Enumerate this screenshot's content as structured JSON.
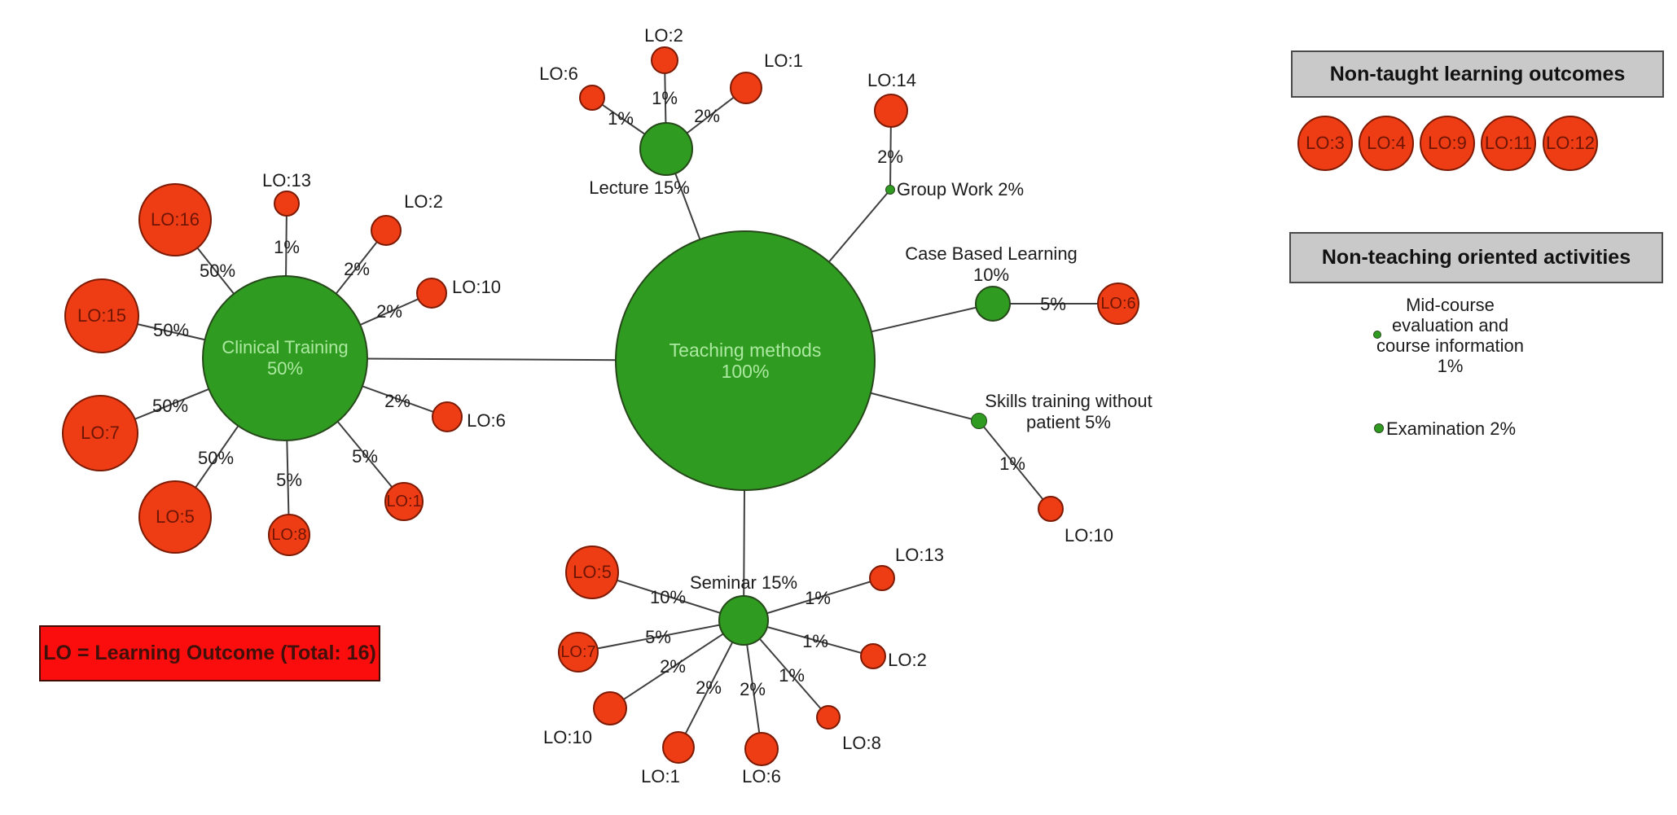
{
  "note": {
    "label": "LO = Learning Outcome (Total: 16)"
  },
  "legend_non_taught": {
    "title": "Non-taught learning outcomes",
    "items": [
      "LO:3",
      "LO:4",
      "LO:9",
      "LO:11",
      "LO:12"
    ]
  },
  "legend_non_teaching": {
    "title": "Non-teaching oriented activities",
    "items": [
      {
        "label": "Mid-course evaluation and course information",
        "percent": "1%"
      },
      {
        "label": "Examination",
        "percent": "2%"
      }
    ]
  },
  "colors": {
    "method_green": "#2f9b21",
    "outcome_red": "#ee3d15",
    "note_red": "#fb0d0d",
    "legend_gray": "#c9c9c9",
    "method_text_light_green": "#ace9a0",
    "outcome_text_dark_red": "#6e1505",
    "edge_gray": "#3f3f3f"
  },
  "graph": {
    "nodes": [
      {
        "id": "teaching",
        "label": "Teaching methods",
        "sublabel": "100%",
        "type": "method"
      },
      {
        "id": "clinical",
        "label": "Clinical Training 50%",
        "type": "method"
      },
      {
        "id": "lecture",
        "label": "Lecture 15%",
        "type": "method"
      },
      {
        "id": "seminar",
        "label": "Seminar 15%",
        "type": "method"
      },
      {
        "id": "cbl",
        "label": "Case Based Learning",
        "sublabel": "10%",
        "type": "method"
      },
      {
        "id": "groupwork",
        "label": "Group Work 2%",
        "type": "activity-dot"
      },
      {
        "id": "skills",
        "label": "Skills training without patient 5%",
        "type": "activity-dot"
      },
      {
        "id": "cl_lo16",
        "label": "LO:16",
        "type": "outcome"
      },
      {
        "id": "cl_lo13",
        "label": "LO:13",
        "type": "outcome"
      },
      {
        "id": "cl_lo2",
        "label": "LO:2",
        "type": "outcome"
      },
      {
        "id": "cl_lo10",
        "label": "LO:10",
        "type": "outcome"
      },
      {
        "id": "cl_lo6",
        "label": "LO:6",
        "type": "outcome"
      },
      {
        "id": "cl_lo1",
        "label": "LO:1",
        "type": "outcome"
      },
      {
        "id": "cl_lo8",
        "label": "LO:8",
        "type": "outcome"
      },
      {
        "id": "cl_lo5",
        "label": "LO:5",
        "type": "outcome"
      },
      {
        "id": "cl_lo7",
        "label": "LO:7",
        "type": "outcome"
      },
      {
        "id": "cl_lo15",
        "label": "LO:15",
        "type": "outcome"
      },
      {
        "id": "lec_lo6",
        "label": "LO:6",
        "type": "outcome"
      },
      {
        "id": "lec_lo2",
        "label": "LO:2",
        "type": "outcome"
      },
      {
        "id": "lec_lo1",
        "label": "LO:1",
        "type": "outcome"
      },
      {
        "id": "gw_lo14",
        "label": "LO:14",
        "type": "outcome"
      },
      {
        "id": "cbl_lo6",
        "label": "LO:6",
        "type": "outcome"
      },
      {
        "id": "sk_lo10",
        "label": "LO:10",
        "type": "outcome"
      },
      {
        "id": "sem_lo5",
        "label": "LO:5",
        "type": "outcome"
      },
      {
        "id": "sem_lo7",
        "label": "LO:7",
        "type": "outcome"
      },
      {
        "id": "sem_lo10",
        "label": "LO:10",
        "type": "outcome"
      },
      {
        "id": "sem_lo1",
        "label": "LO:1",
        "type": "outcome"
      },
      {
        "id": "sem_lo6",
        "label": "LO:6",
        "type": "outcome"
      },
      {
        "id": "sem_lo8",
        "label": "LO:8",
        "type": "outcome"
      },
      {
        "id": "sem_lo2",
        "label": "LO:2",
        "type": "outcome"
      },
      {
        "id": "sem_lo13",
        "label": "LO:13",
        "type": "outcome"
      }
    ],
    "edges": [
      {
        "from": "teaching",
        "to": "lecture"
      },
      {
        "from": "teaching",
        "to": "clinical"
      },
      {
        "from": "teaching",
        "to": "seminar"
      },
      {
        "from": "teaching",
        "to": "groupwork"
      },
      {
        "from": "teaching",
        "to": "cbl"
      },
      {
        "from": "teaching",
        "to": "skills"
      },
      {
        "from": "lecture",
        "to": "lec_lo6",
        "label": "1%"
      },
      {
        "from": "lecture",
        "to": "lec_lo2",
        "label": "1%"
      },
      {
        "from": "lecture",
        "to": "lec_lo1",
        "label": "2%"
      },
      {
        "from": "groupwork",
        "to": "gw_lo14",
        "label": "2%"
      },
      {
        "from": "cbl",
        "to": "cbl_lo6",
        "label": "5%"
      },
      {
        "from": "skills",
        "to": "sk_lo10",
        "label": "1%"
      },
      {
        "from": "clinical",
        "to": "cl_lo16",
        "label": "50%"
      },
      {
        "from": "clinical",
        "to": "cl_lo13",
        "label": "1%"
      },
      {
        "from": "clinical",
        "to": "cl_lo2",
        "label": "2%"
      },
      {
        "from": "clinical",
        "to": "cl_lo10",
        "label": "2%"
      },
      {
        "from": "clinical",
        "to": "cl_lo6",
        "label": "2%"
      },
      {
        "from": "clinical",
        "to": "cl_lo1",
        "label": "5%"
      },
      {
        "from": "clinical",
        "to": "cl_lo8",
        "label": "5%"
      },
      {
        "from": "clinical",
        "to": "cl_lo5",
        "label": "50%"
      },
      {
        "from": "clinical",
        "to": "cl_lo7",
        "label": "50%"
      },
      {
        "from": "clinical",
        "to": "cl_lo15",
        "label": "50%"
      },
      {
        "from": "seminar",
        "to": "sem_lo5",
        "label": "10%"
      },
      {
        "from": "seminar",
        "to": "sem_lo7",
        "label": "5%"
      },
      {
        "from": "seminar",
        "to": "sem_lo10",
        "label": "2%"
      },
      {
        "from": "seminar",
        "to": "sem_lo1",
        "label": "2%"
      },
      {
        "from": "seminar",
        "to": "sem_lo6",
        "label": "2%"
      },
      {
        "from": "seminar",
        "to": "sem_lo8",
        "label": "1%"
      },
      {
        "from": "seminar",
        "to": "sem_lo2",
        "label": "1%"
      },
      {
        "from": "seminar",
        "to": "sem_lo13",
        "label": "1%"
      }
    ]
  }
}
